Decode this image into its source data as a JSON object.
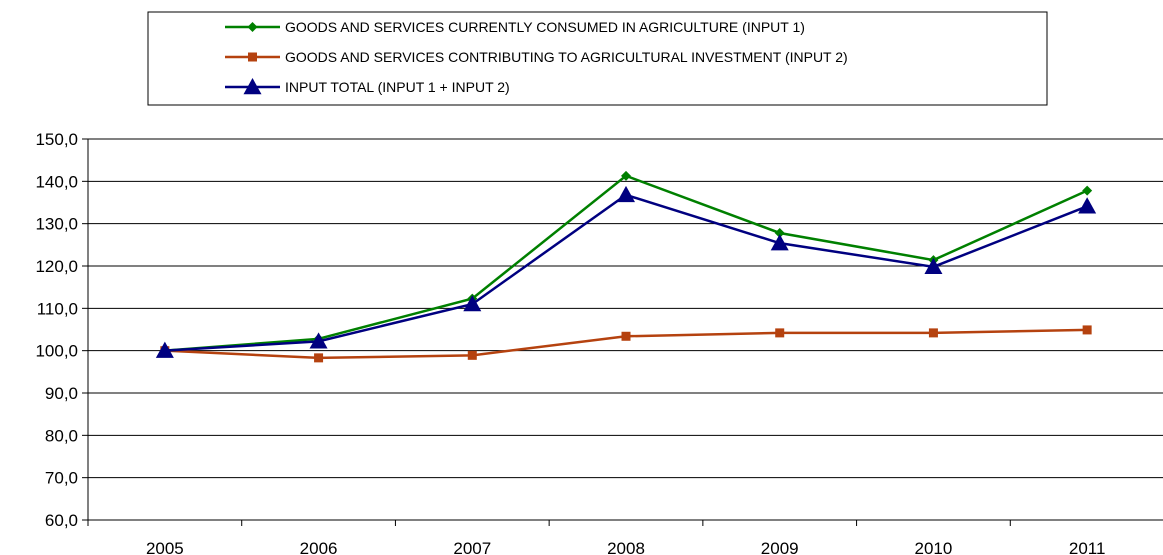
{
  "chart_data": {
    "type": "line",
    "title": "",
    "xlabel": "",
    "ylabel": "",
    "categories": [
      "2005",
      "2006",
      "2007",
      "2008",
      "2009",
      "2010",
      "2011"
    ],
    "ylim": [
      60,
      150
    ],
    "ytick_step": 10,
    "ytick_labels": [
      "60,0",
      "70,0",
      "80,0",
      "90,0",
      "100,0",
      "110,0",
      "120,0",
      "130,0",
      "140,0",
      "150,0"
    ],
    "grid": "horizontal",
    "legend_position": "top",
    "series": [
      {
        "name": "GOODS AND SERVICES CURRENTLY CONSUMED IN AGRICULTURE (INPUT 1)",
        "values": [
          100.0,
          102.8,
          112.3,
          141.3,
          127.8,
          121.4,
          137.8
        ],
        "color": "#008000",
        "marker": "diamond"
      },
      {
        "name": "GOODS AND SERVICES CONTRIBUTING TO AGRICULTURAL INVESTMENT (INPUT 2)",
        "values": [
          100.0,
          98.3,
          98.9,
          103.4,
          104.2,
          104.2,
          104.9
        ],
        "color": "#B5420F",
        "marker": "square"
      },
      {
        "name": "INPUT TOTAL (INPUT 1 + INPUT 2)",
        "values": [
          100.0,
          102.2,
          111.0,
          136.8,
          125.4,
          119.8,
          134.1
        ],
        "color": "#000080",
        "marker": "triangle"
      }
    ]
  }
}
